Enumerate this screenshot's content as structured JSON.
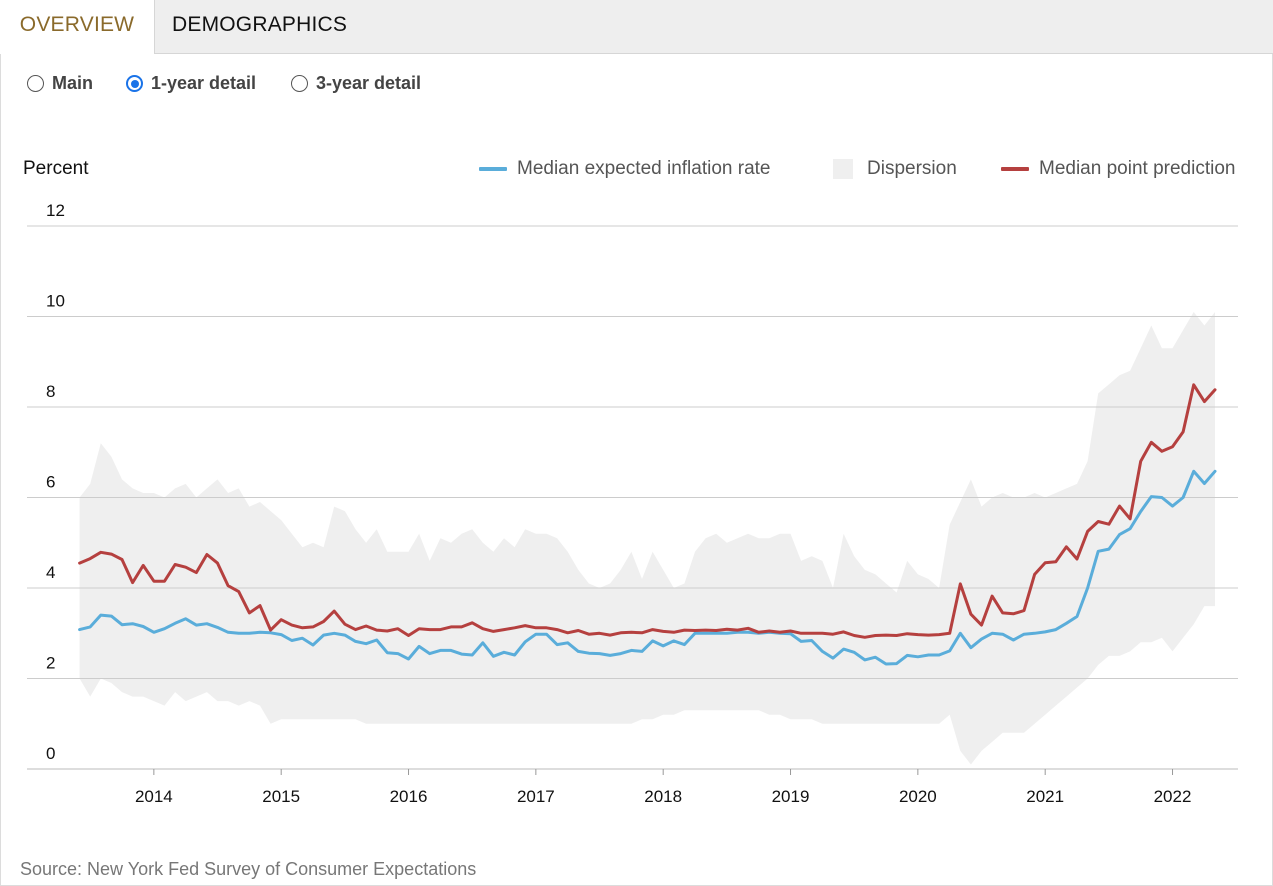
{
  "tabs": [
    {
      "label": "OVERVIEW",
      "active": true
    },
    {
      "label": "DEMOGRAPHICS",
      "active": false
    }
  ],
  "radio_options": [
    {
      "label": "Main",
      "selected": false
    },
    {
      "label": "1-year detail",
      "selected": true
    },
    {
      "label": "3-year detail",
      "selected": false
    }
  ],
  "source": "Source: New York Fed Survey of Consumer Expectations",
  "colors": {
    "median_expected": "#5aadda",
    "dispersion": "#efefef",
    "median_point": "#b5403f",
    "accent_tab": "#8a6a2b",
    "radio_selected": "#1a73e8"
  },
  "chart_data": {
    "type": "line",
    "title": "",
    "ylabel": "Percent",
    "xlabel": "",
    "ylim": [
      0,
      12
    ],
    "yticks": [
      0,
      2,
      4,
      6,
      8,
      10,
      12
    ],
    "xticks": [
      2014,
      2015,
      2016,
      2017,
      2018,
      2019,
      2020,
      2021,
      2022
    ],
    "xlim": [
      2013.42,
      2022.42
    ],
    "grid": true,
    "legend_position": "top-right",
    "legend": [
      "Median expected inflation rate",
      "Dispersion",
      "Median point prediction"
    ],
    "x_start": "2013-06",
    "frequency": "monthly",
    "series": [
      {
        "name": "Median expected inflation rate",
        "values": [
          3.08,
          3.14,
          3.4,
          3.38,
          3.19,
          3.21,
          3.15,
          3.02,
          3.1,
          3.22,
          3.32,
          3.18,
          3.21,
          3.13,
          3.02,
          3.0,
          3.0,
          3.02,
          3.01,
          2.97,
          2.84,
          2.89,
          2.74,
          2.96,
          3.0,
          2.96,
          2.82,
          2.77,
          2.85,
          2.57,
          2.55,
          2.43,
          2.71,
          2.55,
          2.62,
          2.62,
          2.54,
          2.52,
          2.79,
          2.49,
          2.58,
          2.52,
          2.81,
          2.98,
          2.98,
          2.75,
          2.79,
          2.6,
          2.56,
          2.55,
          2.51,
          2.55,
          2.62,
          2.6,
          2.83,
          2.72,
          2.83,
          2.75,
          3.0,
          3.0,
          3.0,
          3.0,
          3.02,
          3.02,
          3.0,
          3.02,
          3.0,
          2.99,
          2.82,
          2.84,
          2.6,
          2.45,
          2.65,
          2.58,
          2.41,
          2.47,
          2.32,
          2.33,
          2.51,
          2.48,
          2.52,
          2.52,
          2.61,
          3.0,
          2.68,
          2.87,
          3.0,
          2.98,
          2.85,
          2.98,
          3.0,
          3.03,
          3.08,
          3.22,
          3.37,
          4.0,
          4.81,
          4.86,
          5.18,
          5.31,
          5.69,
          6.02,
          6.0,
          5.81,
          6.0,
          6.58,
          6.31,
          6.58
        ]
      },
      {
        "name": "Median point prediction",
        "values": [
          4.55,
          4.65,
          4.79,
          4.75,
          4.63,
          4.12,
          4.5,
          4.15,
          4.15,
          4.52,
          4.46,
          4.34,
          4.74,
          4.55,
          4.05,
          3.92,
          3.45,
          3.61,
          3.07,
          3.3,
          3.18,
          3.12,
          3.14,
          3.26,
          3.49,
          3.2,
          3.08,
          3.16,
          3.07,
          3.05,
          3.1,
          2.95,
          3.1,
          3.08,
          3.08,
          3.14,
          3.14,
          3.23,
          3.1,
          3.04,
          3.08,
          3.12,
          3.17,
          3.12,
          3.12,
          3.08,
          3.01,
          3.06,
          2.98,
          3.0,
          2.96,
          3.01,
          3.02,
          3.01,
          3.08,
          3.04,
          3.02,
          3.07,
          3.06,
          3.07,
          3.06,
          3.09,
          3.07,
          3.11,
          3.02,
          3.05,
          3.02,
          3.05,
          3.0,
          3.0,
          3.0,
          2.98,
          3.03,
          2.95,
          2.91,
          2.95,
          2.96,
          2.95,
          2.99,
          2.97,
          2.96,
          2.97,
          3.0,
          4.09,
          3.42,
          3.18,
          3.82,
          3.45,
          3.43,
          3.5,
          4.3,
          4.56,
          4.58,
          4.91,
          4.64,
          5.25,
          5.47,
          5.41,
          5.81,
          5.53,
          6.8,
          7.22,
          7.02,
          7.12,
          7.45,
          8.49,
          8.12,
          8.38
        ]
      },
      {
        "name": "Dispersion",
        "upper": [
          6.0,
          6.3,
          7.2,
          6.9,
          6.4,
          6.2,
          6.1,
          6.1,
          6.0,
          6.2,
          6.3,
          6.0,
          6.2,
          6.4,
          6.1,
          6.2,
          5.8,
          5.9,
          5.7,
          5.5,
          5.2,
          4.9,
          5.0,
          4.9,
          5.8,
          5.7,
          5.3,
          5.0,
          5.3,
          4.8,
          4.8,
          4.8,
          5.2,
          4.6,
          5.1,
          5.0,
          5.2,
          5.3,
          5.0,
          4.8,
          5.1,
          4.9,
          5.3,
          5.2,
          5.2,
          5.1,
          4.8,
          4.4,
          4.1,
          4.0,
          4.1,
          4.4,
          4.8,
          4.2,
          4.8,
          4.4,
          4.0,
          4.1,
          4.8,
          5.1,
          5.2,
          5.0,
          5.1,
          5.2,
          5.1,
          5.1,
          5.2,
          5.2,
          4.6,
          4.7,
          4.6,
          4.0,
          5.2,
          4.7,
          4.4,
          4.3,
          4.1,
          3.9,
          4.6,
          4.3,
          4.2,
          4.0,
          5.4,
          5.9,
          6.4,
          5.8,
          6.0,
          6.1,
          6.0,
          6.0,
          6.1,
          6.0,
          6.1,
          6.2,
          6.3,
          6.8,
          8.3,
          8.5,
          8.7,
          8.8,
          9.3,
          9.8,
          9.3,
          9.3,
          9.7,
          10.1,
          9.8,
          10.1
        ],
        "lower": [
          2.0,
          1.6,
          2.0,
          1.9,
          1.7,
          1.6,
          1.6,
          1.5,
          1.4,
          1.7,
          1.5,
          1.6,
          1.7,
          1.5,
          1.5,
          1.4,
          1.5,
          1.4,
          1.0,
          1.1,
          1.1,
          1.1,
          1.1,
          1.1,
          1.1,
          1.1,
          1.1,
          1.0,
          1.0,
          1.0,
          1.0,
          1.0,
          1.0,
          1.0,
          1.0,
          1.0,
          1.0,
          1.0,
          1.0,
          1.0,
          1.0,
          1.0,
          1.0,
          1.0,
          1.0,
          1.0,
          1.0,
          1.0,
          1.0,
          1.0,
          1.0,
          1.0,
          1.0,
          1.1,
          1.1,
          1.2,
          1.2,
          1.3,
          1.3,
          1.3,
          1.3,
          1.3,
          1.3,
          1.3,
          1.3,
          1.2,
          1.2,
          1.1,
          1.1,
          1.1,
          1.0,
          1.0,
          1.0,
          1.0,
          1.0,
          1.0,
          1.0,
          1.0,
          1.0,
          1.0,
          1.0,
          1.0,
          1.2,
          0.4,
          0.1,
          0.4,
          0.6,
          0.8,
          0.8,
          0.8,
          1.0,
          1.2,
          1.4,
          1.6,
          1.8,
          2.0,
          2.3,
          2.5,
          2.5,
          2.6,
          2.8,
          2.8,
          2.9,
          2.6,
          2.9,
          3.2,
          3.6,
          3.6
        ]
      }
    ]
  }
}
